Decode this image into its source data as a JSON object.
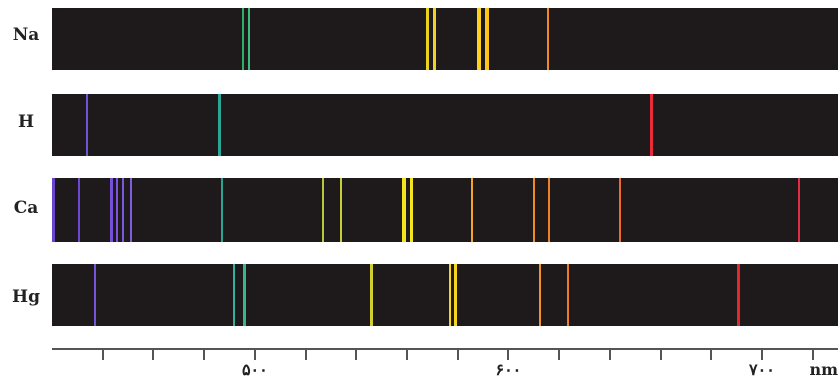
{
  "chart_data": {
    "type": "table",
    "units": "nm",
    "xlim": [
      420,
      730
    ],
    "ticks": [
      {
        "value": 500,
        "label": "۵۰۰"
      },
      {
        "value": 600,
        "label": "۶۰۰"
      },
      {
        "value": 700,
        "label": "۷۰۰"
      }
    ],
    "minor_ticks": [
      440,
      460,
      480,
      520,
      540,
      560,
      580,
      620,
      640,
      660,
      680,
      720
    ],
    "spectra": [
      {
        "element": "Na",
        "lines": [
          {
            "wl": 495.5,
            "color": "#2fae6a",
            "width": 2
          },
          {
            "wl": 497.8,
            "color": "#3bbf7a",
            "width": 2
          },
          {
            "wl": 568.2,
            "color": "#e8d21c",
            "width": 3
          },
          {
            "wl": 570.7,
            "color": "#f0d320",
            "width": 3
          },
          {
            "wl": 588.6,
            "color": "#ffd11c",
            "width": 4
          },
          {
            "wl": 591.4,
            "color": "#ffc51a",
            "width": 4
          },
          {
            "wl": 615.8,
            "color": "#f08a22",
            "width": 2
          }
        ]
      },
      {
        "element": "H",
        "lines": [
          {
            "wl": 434.0,
            "color": "#6b56d6",
            "width": 2
          },
          {
            "wl": 486.1,
            "color": "#2aa596",
            "width": 3
          },
          {
            "wl": 656.3,
            "color": "#ec2b3a",
            "width": 3
          }
        ]
      },
      {
        "element": "Ca",
        "lines": [
          {
            "wl": 420.5,
            "color": "#6a44cc",
            "width": 3
          },
          {
            "wl": 430.5,
            "color": "#6d48d2",
            "width": 2
          },
          {
            "wl": 443.5,
            "color": "#7650d8",
            "width": 3
          },
          {
            "wl": 445.8,
            "color": "#7a55dc",
            "width": 2
          },
          {
            "wl": 448.0,
            "color": "#7c58dd",
            "width": 2
          },
          {
            "wl": 451.0,
            "color": "#7f5ce0",
            "width": 2
          },
          {
            "wl": 487.2,
            "color": "#2aa394",
            "width": 2
          },
          {
            "wl": 527.0,
            "color": "#b3c83a",
            "width": 2
          },
          {
            "wl": 534.0,
            "color": "#c6cf38",
            "width": 2
          },
          {
            "wl": 558.8,
            "color": "#f3e41f",
            "width": 4
          },
          {
            "wl": 561.8,
            "color": "#f6e41f",
            "width": 3
          },
          {
            "wl": 585.6,
            "color": "#f4a624",
            "width": 2
          },
          {
            "wl": 610.0,
            "color": "#f08a22",
            "width": 2
          },
          {
            "wl": 616.2,
            "color": "#ef8224",
            "width": 2
          },
          {
            "wl": 643.9,
            "color": "#ee6a2b",
            "width": 2
          },
          {
            "wl": 714.8,
            "color": "#e42c45",
            "width": 2
          }
        ]
      },
      {
        "element": "Hg",
        "lines": [
          {
            "wl": 436.8,
            "color": "#7654d6",
            "width": 2
          },
          {
            "wl": 491.6,
            "color": "#2fb2a0",
            "width": 2
          },
          {
            "wl": 496.0,
            "color": "#34b78c",
            "width": 3
          },
          {
            "wl": 546.1,
            "color": "#d2cd30",
            "width": 3
          },
          {
            "wl": 576.9,
            "color": "#f4d41e",
            "width": 2
          },
          {
            "wl": 579.1,
            "color": "#f8d51e",
            "width": 3
          },
          {
            "wl": 612.3,
            "color": "#f19424",
            "width": 2
          },
          {
            "wl": 623.4,
            "color": "#f07c24",
            "width": 2
          },
          {
            "wl": 690.7,
            "color": "#e4262f",
            "width": 3
          }
        ]
      }
    ]
  }
}
